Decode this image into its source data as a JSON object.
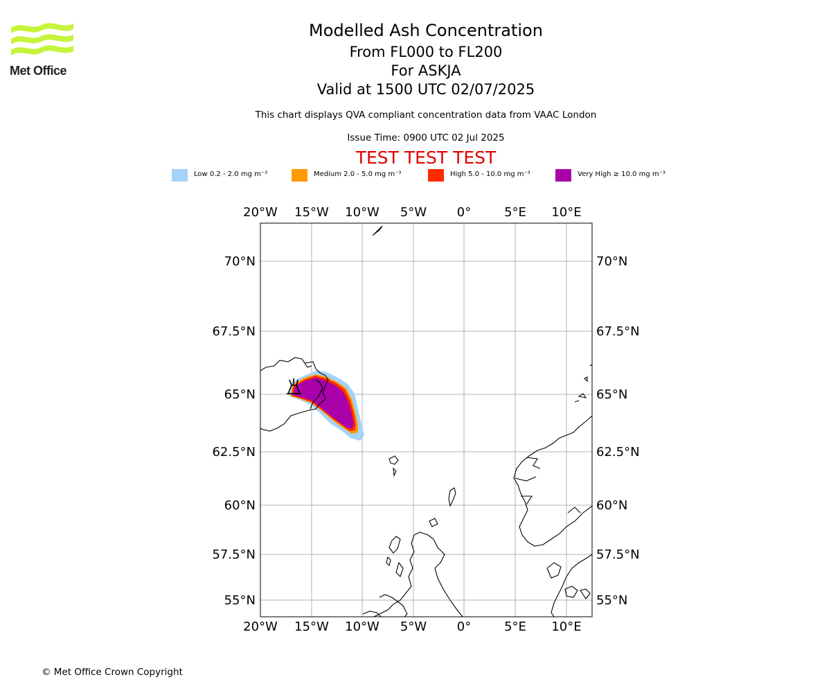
{
  "branding": {
    "org_name": "Met Office"
  },
  "title": {
    "main": "Modelled Ash Concentration",
    "level_range": "From FL000 to FL200",
    "volcano": "For ASKJA",
    "valid_time": "Valid at 1500 UTC 02/07/2025"
  },
  "subtitle": {
    "description": "This chart displays QVA compliant concentration data from VAAC London",
    "issue_time": "Issue Time: 0900 UTC 02 Jul 2025",
    "test_banner": "TEST TEST TEST"
  },
  "colors": {
    "test_banner": "#e10000"
  },
  "legend": [
    {
      "label": "Low 0.2 - 2.0 mg m⁻³",
      "color": "#a3d3f9"
    },
    {
      "label": "Medium 2.0 - 5.0 mg m⁻³",
      "color": "#ff9a00"
    },
    {
      "label": "High 5.0 - 10.0 mg m⁻³",
      "color": "#ff2a00"
    },
    {
      "label": "Very High  ≥  10.0 mg m⁻³",
      "color": "#aa00aa"
    }
  ],
  "map": {
    "lon_labels": [
      "20°W",
      "15°W",
      "10°W",
      "5°W",
      "0°",
      "5°E",
      "10°E"
    ],
    "lat_labels": [
      "70°N",
      "67.5°N",
      "65°N",
      "62.5°N",
      "60°N",
      "57.5°N",
      "55°N"
    ],
    "volcano_marker": "volcano-symbol"
  },
  "footer": {
    "copyright": "© Met Office Crown Copyright"
  }
}
